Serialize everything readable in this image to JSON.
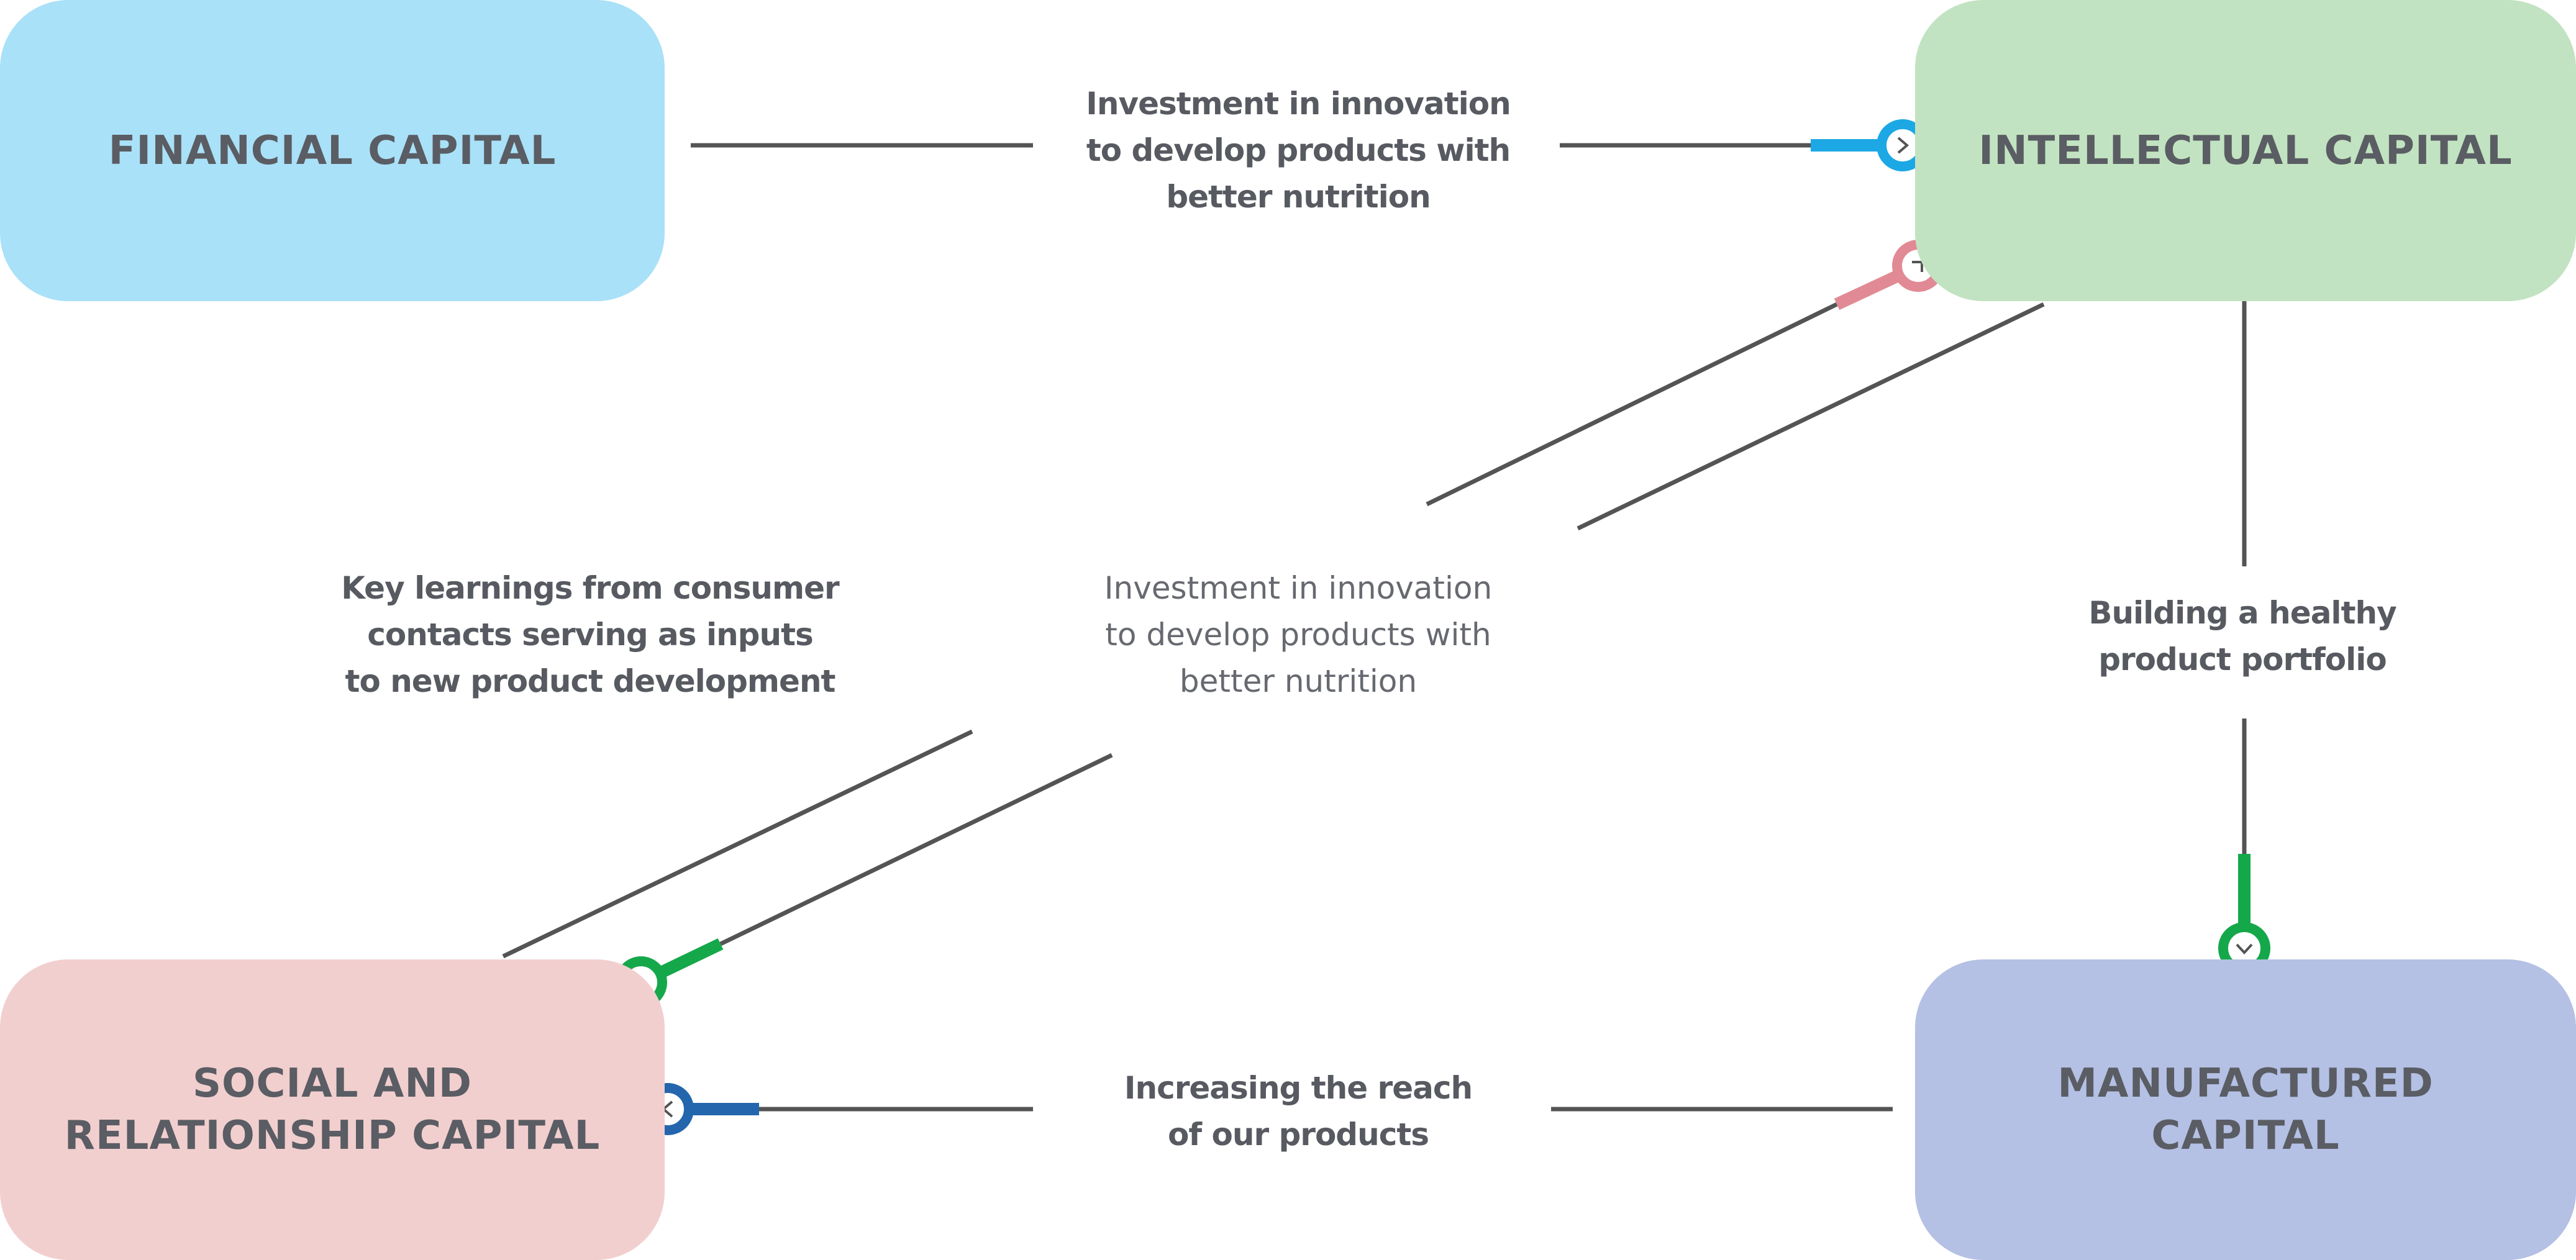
{
  "colors": {
    "financial": "#a9e1f8",
    "intellectual": "#c2e3c1",
    "social": "#f2cfcf",
    "manufactured": "#b4c0e4",
    "line": "#545454",
    "arrow_light_blue": "#1ca8e4",
    "arrow_pink": "#e18a95",
    "arrow_green": "#15a84a",
    "arrow_dark_blue": "#2466ad"
  },
  "boxes": {
    "financial": "FINANCIAL CAPITAL",
    "intellectual": "INTELLECTUAL CAPITAL",
    "social": "SOCIAL AND\nRELATIONSHIP CAPITAL",
    "manufactured": "MANUFACTURED\nCAPITAL"
  },
  "labels": {
    "financial_to_intellectual": "Investment in innovation\nto develop products with\nbetter nutrition",
    "center": "Investment in innovation\nto develop products with\nbetter nutrition",
    "key_learnings": "Key learnings from consumer\ncontacts serving as inputs\nto new product development",
    "healthy_portfolio": "Building a healthy\nproduct portfolio",
    "reach": "Increasing the reach\nof our products"
  },
  "icons": {
    "to_intellectual": "chevron-right-icon",
    "to_intellectual_diag": "chevron-up-right-icon",
    "to_manufactured": "chevron-down-icon",
    "to_social_diag": "chevron-down-left-icon",
    "to_social": "chevron-left-icon"
  }
}
